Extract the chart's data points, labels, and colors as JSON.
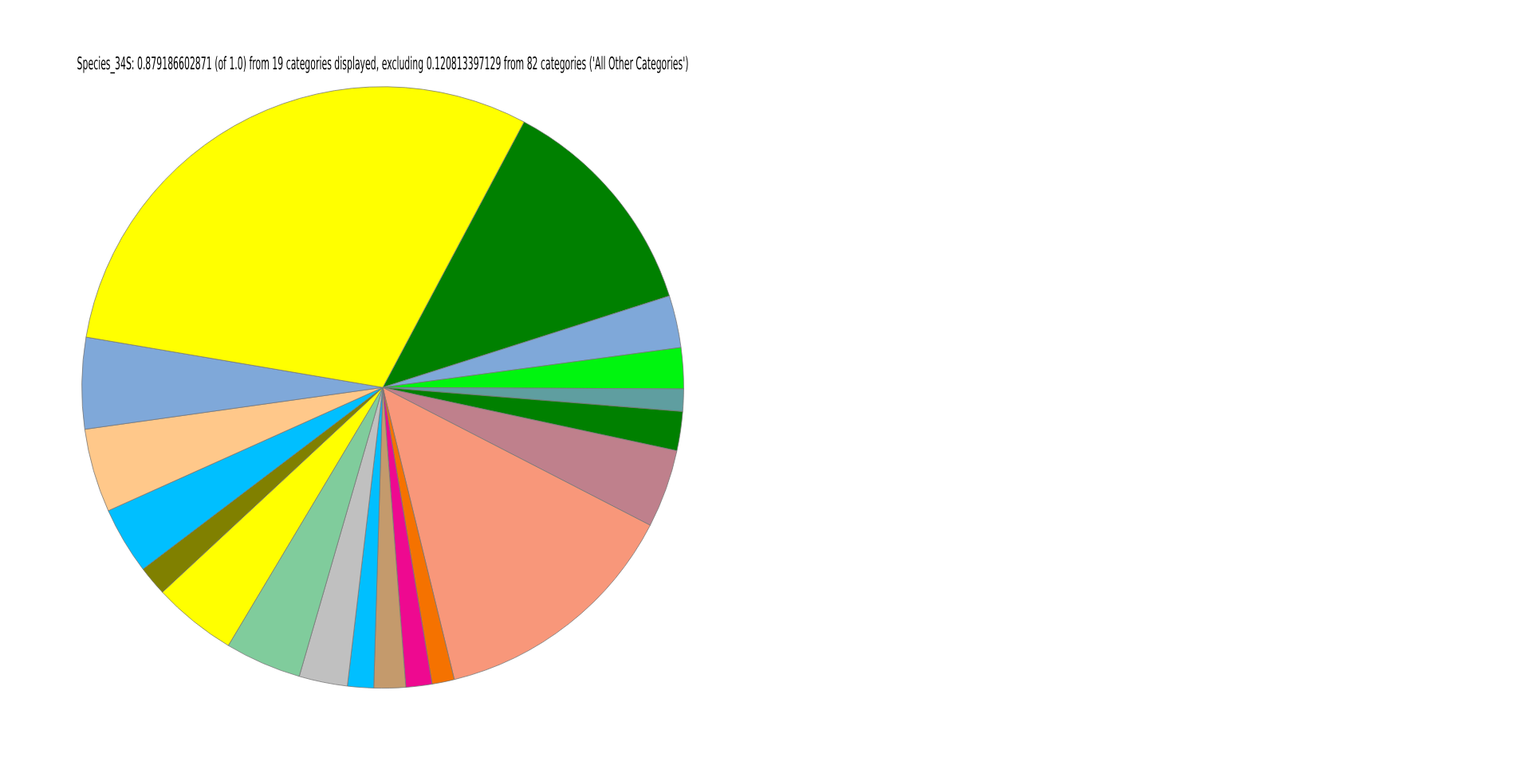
{
  "chart_data": {
    "type": "pie",
    "title": "Species_34S: 0.879186602871 (of 1.0) from 19 categories displayed, excluding 0.120813397129 from 82 categories ('All Other Categories')",
    "categories": [
      null,
      null,
      null,
      null,
      null,
      null,
      null,
      null,
      null,
      null,
      null,
      null,
      null,
      null,
      null,
      null,
      null,
      null,
      null
    ],
    "values": [
      12.3,
      2.8,
      2.2,
      1.2,
      2.1,
      4.2,
      13.6,
      1.2,
      1.4,
      1.7,
      1.4,
      2.6,
      4.1,
      4.5,
      1.6,
      3.6,
      4.5,
      4.9,
      30.1
    ],
    "colors": [
      "#008000",
      "#7fa8d9",
      "#00f50f",
      "#5f9ea0",
      "#008000",
      "#bf808c",
      "#f8977a",
      "#f57200",
      "#ee0990",
      "#c49a6c",
      "#00bfff",
      "#c0c0c0",
      "#80cc9c",
      "#ffff00",
      "#808000",
      "#00bfff",
      "#ffc88a",
      "#7fa8d9",
      "#ffff00"
    ],
    "legend": false
  }
}
